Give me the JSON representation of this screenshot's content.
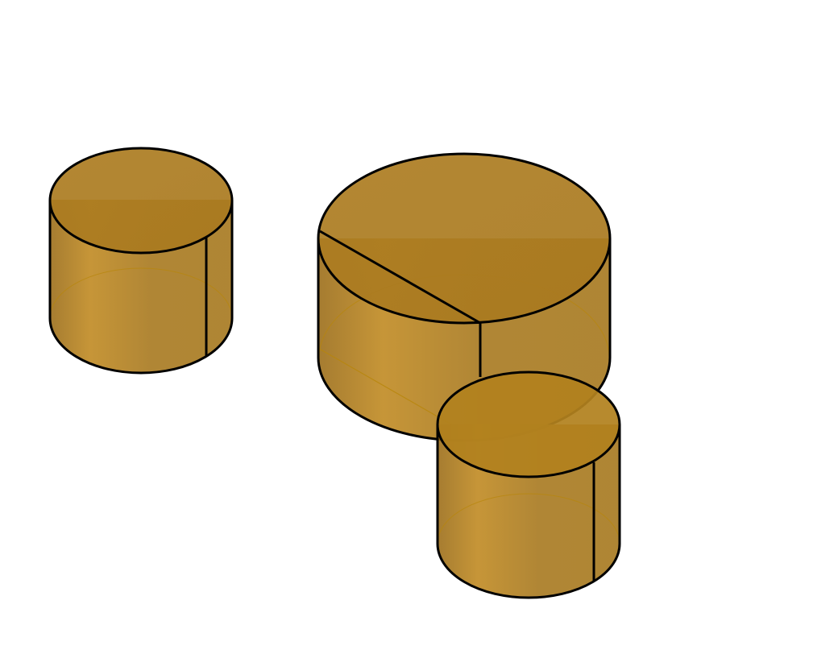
{
  "scene": {
    "background": "#ffffff",
    "body_color": "#a9791f",
    "edge_color": "#000000",
    "hidden_edge_color": "#b8860b",
    "solids": [
      {
        "name": "small-cylinder-left",
        "shape": "cylinder",
        "seam": "vertical"
      },
      {
        "name": "large-cylinder",
        "shape": "cylinder",
        "seam": "radial-cut"
      },
      {
        "name": "small-cylinder-front",
        "shape": "cylinder",
        "seam": "vertical"
      }
    ]
  }
}
